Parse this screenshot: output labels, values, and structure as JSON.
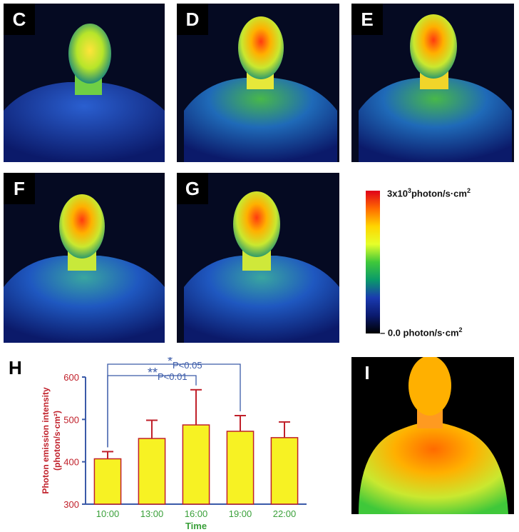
{
  "panels": {
    "C": {
      "label": "C"
    },
    "D": {
      "label": "D"
    },
    "E": {
      "label": "E"
    },
    "F": {
      "label": "F"
    },
    "G": {
      "label": "G"
    },
    "I": {
      "label": "I"
    },
    "H": {
      "label": "H"
    }
  },
  "colorbar": {
    "max_mantissa": "3x10",
    "max_exp": "3",
    "max_unit": "photon/s·cm",
    "max_unit_exp": "2",
    "min_label": "0.0 photon/s·cm",
    "min_label_exp": "2",
    "colors": [
      "#e0001a",
      "#ff6a00",
      "#ffd500",
      "#e6ff2a",
      "#3fc83a",
      "#0a9a6a",
      "#1a3ab0",
      "#0a1a6e",
      "#000000"
    ]
  },
  "chart_data": {
    "type": "bar",
    "categories": [
      "10:00",
      "13:00",
      "16:00",
      "19:00",
      "22:00"
    ],
    "values": [
      407,
      455,
      487,
      472,
      457
    ],
    "errors": [
      17,
      43,
      83,
      37,
      37
    ],
    "ylim": [
      300,
      600
    ],
    "yticks": [
      300,
      400,
      500,
      600
    ],
    "ylabel_line1": "Photon emission intensity",
    "ylabel_line2": "(photon/s·cm²)",
    "xlabel": "Time",
    "bar_color": "#f7f223",
    "bar_edge": "#c0202a",
    "axis_color": "#3a5aa8",
    "ylabel_color": "#c0202a",
    "xlabel_color": "#3aa03a",
    "significance": [
      {
        "stars": "*",
        "label": "P<0.05",
        "from": "10:00",
        "to": "19:00"
      },
      {
        "stars": "**",
        "label": "P<0.01",
        "from": "10:00",
        "to": "16:00"
      }
    ]
  }
}
